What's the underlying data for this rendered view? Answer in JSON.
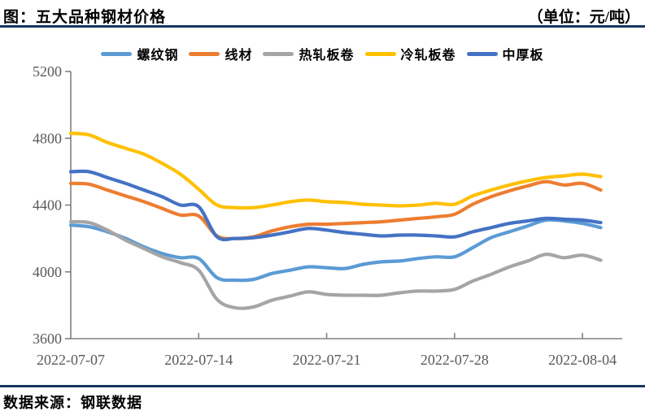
{
  "header": {
    "title": "图：五大品种钢材价格",
    "unit": "（单位：元/吨）"
  },
  "footer": {
    "source": "数据来源：钢联数据"
  },
  "colors": {
    "divider_rule": "#17375E",
    "axis": "#808080",
    "tick_text": "#595959"
  },
  "chart_data": {
    "type": "line",
    "title": "五大品种钢材价格",
    "unit": "元/吨",
    "grid": false,
    "legend_position": "top",
    "ylim": [
      3600,
      5200
    ],
    "y_ticks": [
      3600,
      4000,
      4400,
      4800,
      5200
    ],
    "x_tick_labels": [
      "2022-07-07",
      "2022-07-14",
      "2022-07-21",
      "2022-07-28",
      "2022-08-04"
    ],
    "x": [
      "2022-07-07",
      "2022-07-08",
      "2022-07-09",
      "2022-07-10",
      "2022-07-11",
      "2022-07-12",
      "2022-07-13",
      "2022-07-14",
      "2022-07-15",
      "2022-07-16",
      "2022-07-17",
      "2022-07-18",
      "2022-07-19",
      "2022-07-20",
      "2022-07-21",
      "2022-07-22",
      "2022-07-23",
      "2022-07-24",
      "2022-07-25",
      "2022-07-26",
      "2022-07-27",
      "2022-07-28",
      "2022-07-29",
      "2022-07-30",
      "2022-07-31",
      "2022-08-01",
      "2022-08-02",
      "2022-08-03",
      "2022-08-04",
      "2022-08-05"
    ],
    "series": [
      {
        "name": "螺纹钢",
        "id": "rebar",
        "color": "#5B9BD5",
        "values": [
          4280,
          4270,
          4240,
          4200,
          4150,
          4110,
          4085,
          4080,
          3965,
          3950,
          3955,
          3990,
          4010,
          4030,
          4025,
          4020,
          4045,
          4060,
          4065,
          4080,
          4090,
          4090,
          4145,
          4205,
          4240,
          4275,
          4310,
          4305,
          4290,
          4265
        ]
      },
      {
        "name": "线材",
        "id": "wire-rod",
        "color": "#ED7D31",
        "values": [
          4530,
          4525,
          4490,
          4455,
          4420,
          4380,
          4340,
          4335,
          4215,
          4200,
          4210,
          4245,
          4270,
          4285,
          4285,
          4290,
          4295,
          4300,
          4310,
          4320,
          4330,
          4345,
          4405,
          4450,
          4485,
          4515,
          4540,
          4520,
          4530,
          4490
        ]
      },
      {
        "name": "热轧板卷",
        "id": "hot-rolled-coil",
        "color": "#A5A5A5",
        "values": [
          4300,
          4295,
          4250,
          4190,
          4140,
          4090,
          4055,
          4010,
          3835,
          3785,
          3790,
          3830,
          3855,
          3880,
          3865,
          3860,
          3860,
          3860,
          3875,
          3885,
          3885,
          3895,
          3945,
          3985,
          4030,
          4065,
          4105,
          4085,
          4100,
          4070
        ]
      },
      {
        "name": "冷轧板卷",
        "id": "cold-rolled-coil",
        "color": "#FFC000",
        "values": [
          4830,
          4820,
          4775,
          4740,
          4705,
          4650,
          4585,
          4495,
          4400,
          4385,
          4385,
          4400,
          4420,
          4430,
          4420,
          4415,
          4405,
          4400,
          4395,
          4400,
          4410,
          4405,
          4455,
          4490,
          4520,
          4545,
          4565,
          4575,
          4585,
          4570
        ]
      },
      {
        "name": "中厚板",
        "id": "medium-plate",
        "color": "#4472C4",
        "values": [
          4600,
          4600,
          4565,
          4530,
          4490,
          4450,
          4400,
          4390,
          4210,
          4200,
          4205,
          4220,
          4240,
          4260,
          4250,
          4235,
          4225,
          4215,
          4220,
          4220,
          4215,
          4210,
          4240,
          4265,
          4290,
          4305,
          4320,
          4315,
          4310,
          4295
        ]
      }
    ]
  }
}
